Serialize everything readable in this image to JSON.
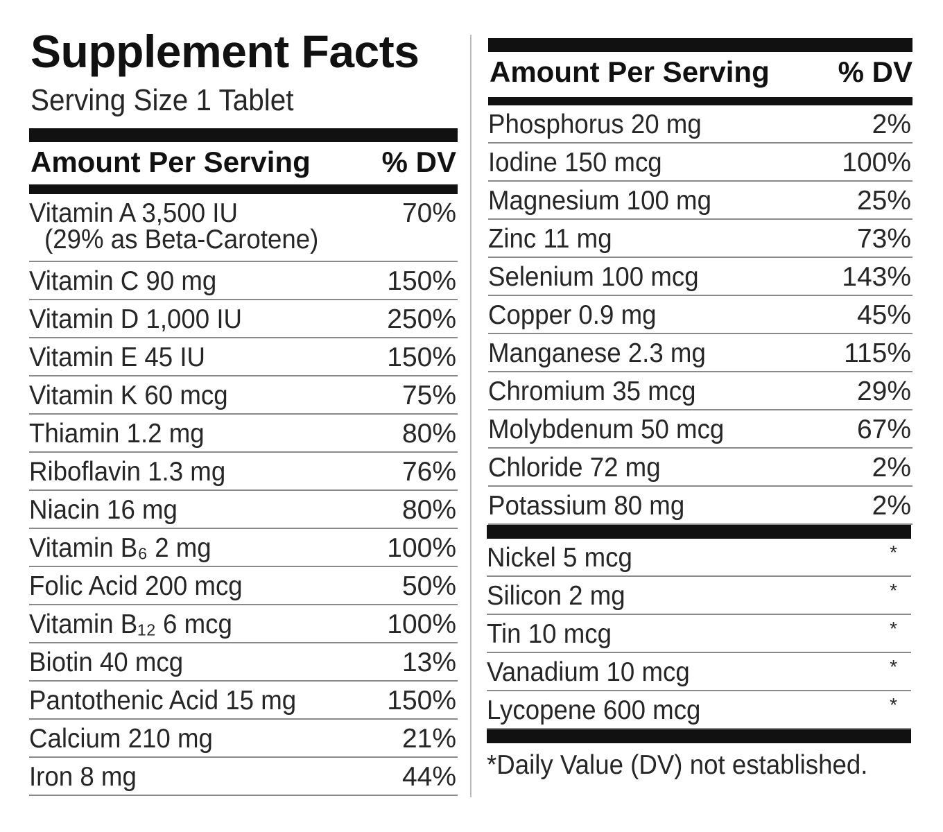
{
  "left": {
    "title": "Supplement Facts",
    "serving_size": "Serving Size 1 Tablet",
    "header": {
      "amount": "Amount Per Serving",
      "dv": "% DV"
    },
    "rows": [
      {
        "name": "Vitamin A 3,500 IU",
        "note": "(29% as Beta-Carotene)",
        "dv": "70%"
      },
      {
        "name": "Vitamin C 90 mg",
        "dv": "150%"
      },
      {
        "name": "Vitamin D 1,000 IU",
        "dv": "250%"
      },
      {
        "name": "Vitamin E 45 IU",
        "dv": "150%"
      },
      {
        "name": "Vitamin K 60 mcg",
        "dv": "75%"
      },
      {
        "name": "Thiamin 1.2 mg",
        "dv": "80%"
      },
      {
        "name": "Riboflavin 1.3 mg",
        "dv": "76%"
      },
      {
        "name": "Niacin 16 mg",
        "dv": "80%"
      },
      {
        "name": "Vitamin B₆ 2 mg",
        "dv": "100%"
      },
      {
        "name": "Folic Acid 200 mcg",
        "dv": "50%"
      },
      {
        "name": "Vitamin B₁₂ 6 mcg",
        "dv": "100%"
      },
      {
        "name": "Biotin 40 mcg",
        "dv": "13%"
      },
      {
        "name": "Pantothenic Acid 15 mg",
        "dv": "150%"
      },
      {
        "name": "Calcium 210 mg",
        "dv": "21%"
      },
      {
        "name": "Iron 8 mg",
        "dv": "44%"
      }
    ]
  },
  "right": {
    "header": {
      "amount": "Amount Per Serving",
      "dv": "% DV"
    },
    "rows": [
      {
        "name": "Phosphorus 20 mg",
        "dv": "2%"
      },
      {
        "name": "Iodine 150 mcg",
        "dv": "100%"
      },
      {
        "name": "Magnesium 100 mg",
        "dv": "25%"
      },
      {
        "name": "Zinc 11 mg",
        "dv": "73%"
      },
      {
        "name": "Selenium 100 mcg",
        "dv": "143%"
      },
      {
        "name": "Copper 0.9 mg",
        "dv": "45%"
      },
      {
        "name": "Manganese 2.3 mg",
        "dv": "115%"
      },
      {
        "name": "Chromium 35 mcg",
        "dv": "29%"
      },
      {
        "name": "Molybdenum 50 mcg",
        "dv": "67%"
      },
      {
        "name": "Chloride 72 mg",
        "dv": "2%"
      },
      {
        "name": "Potassium 80 mg",
        "dv": "2%"
      }
    ],
    "rows_not_established": [
      {
        "name": "Nickel 5 mcg",
        "dv": "*"
      },
      {
        "name": "Silicon 2 mg",
        "dv": "*"
      },
      {
        "name": "Tin 10 mcg",
        "dv": "*"
      },
      {
        "name": "Vanadium 10 mcg",
        "dv": "*"
      },
      {
        "name": "Lycopene 600 mcg",
        "dv": "*"
      }
    ],
    "footnote": "*Daily Value (DV) not established."
  }
}
